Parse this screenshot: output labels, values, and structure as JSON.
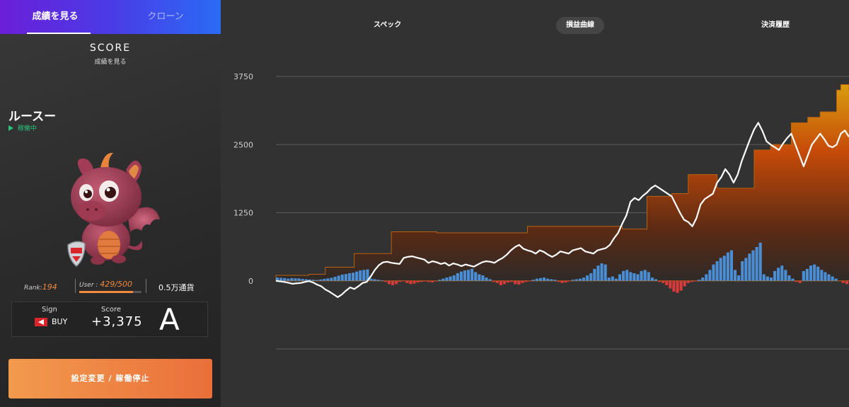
{
  "tabs": [
    {
      "label": "成績を見る",
      "active": true
    },
    {
      "label": "クローン",
      "active": false
    }
  ],
  "score_header": {
    "title": "SCORE",
    "subtitle": "成績を見る"
  },
  "bot": {
    "name": "ルースー",
    "status": "稼働中"
  },
  "rank": {
    "label": "Rank:",
    "value": "194"
  },
  "user": {
    "label": "User : ",
    "value": "429/500",
    "fraction": 0.858
  },
  "currency": "0.5万通貨",
  "sign": {
    "label": "Sign",
    "value": "BUY"
  },
  "score": {
    "label": "Score",
    "value": "+3,375"
  },
  "grade": "A",
  "action_button": "設定変更 / 稼働停止",
  "nav": [
    {
      "label": "スペック",
      "active": false
    },
    {
      "label": "損益曲線",
      "active": true
    },
    {
      "label": "決済履歴",
      "active": false
    }
  ],
  "colors": {
    "accent": "#f28a3c",
    "status": "#27c27a",
    "bar_up": "#4a8fd6",
    "bar_down": "#d93a3a",
    "line": "#ffffff"
  },
  "chart_data": {
    "type": "line",
    "yticks": [
      0,
      1250,
      2500,
      3750
    ],
    "ylim": [
      -1250,
      3750
    ],
    "line": [
      0,
      -10,
      -20,
      -35,
      -55,
      -45,
      -40,
      -20,
      -5,
      -30,
      -70,
      -100,
      -160,
      -200,
      -250,
      -300,
      -250,
      -180,
      -120,
      -150,
      -100,
      -40,
      -20,
      80,
      200,
      290,
      340,
      350,
      330,
      320,
      310,
      420,
      440,
      450,
      430,
      410,
      390,
      330,
      360,
      340,
      310,
      330,
      280,
      320,
      300,
      270,
      300,
      280,
      260,
      300,
      340,
      360,
      350,
      330,
      380,
      420,
      480,
      560,
      620,
      660,
      590,
      560,
      540,
      500,
      560,
      530,
      480,
      440,
      480,
      540,
      520,
      500,
      560,
      580,
      600,
      540,
      520,
      500,
      560,
      580,
      600,
      660,
      780,
      880,
      1050,
      1200,
      1450,
      1520,
      1480,
      1560,
      1620,
      1700,
      1750,
      1700,
      1650,
      1600,
      1550,
      1400,
      1250,
      1120,
      1080,
      1000,
      1150,
      1400,
      1500,
      1550,
      1600,
      1800,
      1900,
      2050,
      1950,
      1800,
      1950,
      2200,
      2400,
      2600,
      2780,
      2900,
      2750,
      2560,
      2500,
      2450,
      2400,
      2520,
      2620,
      2700,
      2500,
      2300,
      2100,
      2300,
      2500,
      2600,
      2700,
      2600,
      2480,
      2450,
      2500,
      2700,
      2760,
      2640
    ],
    "high": [
      100,
      100,
      100,
      100,
      100,
      100,
      100,
      100,
      120,
      120,
      120,
      120,
      250,
      250,
      250,
      250,
      250,
      250,
      250,
      500,
      500,
      500,
      500,
      500,
      500,
      500,
      500,
      500,
      900,
      900,
      900,
      900,
      900,
      900,
      900,
      900,
      900,
      900,
      900,
      880,
      880,
      880,
      880,
      880,
      880,
      880,
      880,
      880,
      880,
      880,
      880,
      880,
      880,
      880,
      880,
      880,
      880,
      880,
      880,
      880,
      880,
      1000,
      1000,
      1000,
      1000,
      1000,
      1000,
      1000,
      1000,
      1000,
      1000,
      1000,
      1000,
      1000,
      1000,
      1000,
      1000,
      1000,
      1000,
      1000,
      1000,
      1000,
      1000,
      1000,
      950,
      950,
      950,
      950,
      950,
      950,
      1550,
      1550,
      1550,
      1550,
      1550,
      1550,
      1600,
      1600,
      1600,
      1600,
      1950,
      1950,
      1950,
      1950,
      1950,
      1950,
      1950,
      1700,
      1700,
      1700,
      1700,
      1700,
      1700,
      1700,
      1700,
      1700,
      2400,
      2400,
      2400,
      2400,
      2500,
      2500,
      2500,
      2500,
      2500,
      2900,
      2900,
      2900,
      2900,
      3000,
      3000,
      3000,
      3100,
      3100,
      3100,
      3100,
      3500,
      3600,
      3600,
      3500,
      3500,
      3500,
      3600,
      3650
    ],
    "bars": [
      60,
      55,
      50,
      40,
      50,
      45,
      45,
      35,
      30,
      25,
      20,
      15,
      25,
      35,
      45,
      55,
      75,
      95,
      115,
      125,
      140,
      150,
      170,
      190,
      200,
      210,
      40,
      30,
      20,
      10,
      -20,
      -60,
      -80,
      -60,
      -20,
      -10,
      -40,
      -60,
      -50,
      -30,
      -20,
      -10,
      -20,
      -30,
      -10,
      20,
      40,
      60,
      80,
      100,
      140,
      170,
      190,
      200,
      220,
      160,
      120,
      100,
      60,
      30,
      -20,
      -40,
      -80,
      -60,
      -30,
      -20,
      -60,
      -70,
      -40,
      -20,
      -10,
      20,
      40,
      50,
      60,
      40,
      30,
      20,
      -20,
      -40,
      -30,
      -10,
      20,
      30,
      40,
      60,
      100,
      140,
      220,
      280,
      320,
      300,
      60,
      80,
      40,
      120,
      180,
      200,
      160,
      140,
      120,
      180,
      200,
      160,
      60,
      30,
      -20,
      -40,
      -80,
      -140,
      -200,
      -220,
      -180,
      -100,
      -40,
      -20,
      -10,
      20,
      60,
      120,
      200,
      300,
      360,
      420,
      460,
      520,
      560,
      200,
      100,
      360,
      420,
      500,
      560,
      620,
      700,
      120,
      80,
      60,
      180,
      240,
      280,
      200,
      100,
      40,
      -20,
      -40,
      180,
      220,
      280,
      300,
      260,
      200,
      160,
      120,
      80,
      40,
      0,
      -40,
      -60
    ]
  }
}
